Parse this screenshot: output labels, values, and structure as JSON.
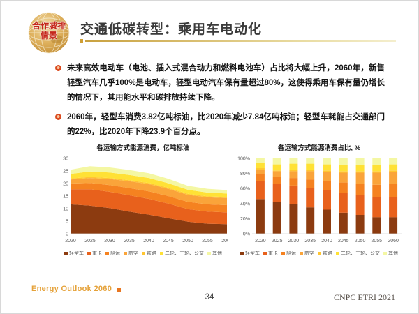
{
  "logo": {
    "line1": "合作减排",
    "line2": "情景"
  },
  "header": {
    "title": "交通低碳转型：乘用车电动化"
  },
  "bullets": [
    "未来高效电动车（电池、插入式混合动力和燃料电池车）占比将大幅上升，2060年，新售轻型汽车几乎100%是电动车，轻型电动汽车保有量超过80%，这使得乘用车保有量仍增长的情况下，其用能水平和碳排放持续下降。",
    "2060年，轻型车消费3.82亿吨标油，比2020年减少7.84亿吨标油；轻型车耗能占交通部门的22%，比2020年下降23.9个百分点。"
  ],
  "footer": {
    "brand": "Energy Outlook 2060",
    "page": "34",
    "credit": "CNPC ETRI 2021"
  },
  "colors": {
    "accent_gold": "#c9a85c",
    "accent_orange": "#e87722",
    "title_text": "#3a3a3a",
    "bullet_icon": "#db4a1e",
    "logo_text_red": "#c5281c",
    "footer_brand": "#e5a23a"
  },
  "chart_data": [
    {
      "type": "area",
      "stacked": true,
      "title": "各运输方式能源消费，亿吨标油",
      "x": [
        2020,
        2025,
        2030,
        2035,
        2040,
        2045,
        2050,
        2055,
        2060
      ],
      "ylim": [
        0,
        30
      ],
      "yticks": [
        0,
        5,
        10,
        15,
        20,
        25,
        30
      ],
      "ytick_suffix": "",
      "grid": false,
      "legend_position": "bottom",
      "series": [
        {
          "name": "轻型车",
          "color": "#8c3b10",
          "values": [
            11.7,
            11.2,
            10.2,
            8.8,
            7.6,
            6.2,
            4.8,
            4.0,
            3.8
          ]
        },
        {
          "name": "重卡",
          "color": "#e8611c",
          "values": [
            6.0,
            6.5,
            6.5,
            6.5,
            6.3,
            5.8,
            5.0,
            4.8,
            4.7
          ]
        },
        {
          "name": "船运",
          "color": "#f58220",
          "values": [
            2.3,
            2.5,
            2.7,
            2.9,
            3.0,
            3.0,
            2.9,
            2.9,
            2.9
          ]
        },
        {
          "name": "航空",
          "color": "#faa43a",
          "values": [
            1.6,
            2.0,
            2.4,
            2.7,
            2.9,
            2.9,
            2.8,
            2.8,
            2.8
          ]
        },
        {
          "name": "铁路",
          "color": "#ffc530",
          "values": [
            0.4,
            0.4,
            0.4,
            0.4,
            0.4,
            0.4,
            0.4,
            0.4,
            0.4
          ]
        },
        {
          "name": "二轮、三轮、公交",
          "color": "#ffe135",
          "values": [
            1.8,
            2.2,
            2.2,
            2.1,
            2.0,
            1.8,
            1.6,
            1.5,
            1.4
          ]
        },
        {
          "name": "其他",
          "color": "#f4f7a3",
          "values": [
            1.7,
            2.1,
            2.0,
            2.0,
            1.9,
            1.8,
            1.6,
            1.5,
            1.4
          ]
        }
      ]
    },
    {
      "type": "bar",
      "stacked": true,
      "normalized": true,
      "title": "各运输方式能源消费占比, %",
      "x": [
        2020,
        2025,
        2030,
        2035,
        2040,
        2045,
        2050,
        2055,
        2060
      ],
      "ylim": [
        0,
        100
      ],
      "yticks": [
        0,
        20,
        40,
        60,
        80,
        100
      ],
      "ytick_suffix": "%",
      "grid": false,
      "legend_position": "bottom",
      "series": [
        {
          "name": "轻型车",
          "color": "#8c3b10",
          "values": [
            46,
            42,
            39,
            35,
            32,
            28,
            25,
            22,
            22
          ]
        },
        {
          "name": "重卡",
          "color": "#e8611c",
          "values": [
            24,
            24,
            25,
            26,
            26,
            26,
            26,
            27,
            27
          ]
        },
        {
          "name": "船运",
          "color": "#f58220",
          "values": [
            9,
            9,
            10,
            11,
            12,
            14,
            15,
            16,
            17
          ]
        },
        {
          "name": "航空",
          "color": "#faa43a",
          "values": [
            6,
            8,
            9,
            11,
            12,
            13,
            15,
            16,
            16
          ]
        },
        {
          "name": "铁路",
          "color": "#ffc530",
          "values": [
            2,
            1,
            2,
            2,
            2,
            2,
            2,
            2,
            2
          ]
        },
        {
          "name": "二轮、三轮、公交",
          "color": "#ffe135",
          "values": [
            7,
            8,
            8,
            8,
            8,
            8,
            8,
            8,
            8
          ]
        },
        {
          "name": "其他",
          "color": "#f4f7a3",
          "values": [
            6,
            8,
            7,
            7,
            8,
            9,
            9,
            9,
            8
          ]
        }
      ]
    }
  ]
}
